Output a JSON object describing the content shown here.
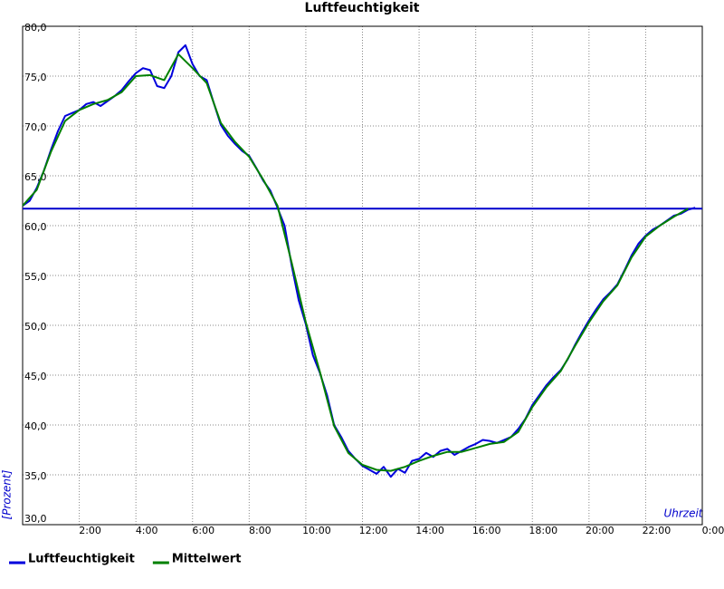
{
  "chart_data": {
    "type": "line",
    "title": "Luftfeuchtigkeit",
    "x_label": "Uhrzeit",
    "y_label": "[Prozent]",
    "xlim": [
      0,
      24
    ],
    "ylim": [
      30,
      80
    ],
    "xticks": [
      {
        "value": 2,
        "label": "2:00"
      },
      {
        "value": 4,
        "label": "4:00"
      },
      {
        "value": 6,
        "label": "6:00"
      },
      {
        "value": 8,
        "label": "8:00"
      },
      {
        "value": 10,
        "label": "10:00"
      },
      {
        "value": 12,
        "label": "12:00"
      },
      {
        "value": 14,
        "label": "14:00"
      },
      {
        "value": 16,
        "label": "16:00"
      },
      {
        "value": 18,
        "label": "18:00"
      },
      {
        "value": 20,
        "label": "20:00"
      },
      {
        "value": 22,
        "label": "22:00"
      },
      {
        "value": 24,
        "label": "0:00"
      }
    ],
    "yticks": [
      {
        "value": 30,
        "label": "30,0"
      },
      {
        "value": 35,
        "label": "35,0"
      },
      {
        "value": 40,
        "label": "40,0"
      },
      {
        "value": 45,
        "label": "45,0"
      },
      {
        "value": 50,
        "label": "50,0"
      },
      {
        "value": 55,
        "label": "55,0"
      },
      {
        "value": 60,
        "label": "60,0"
      },
      {
        "value": 65,
        "label": "65,0"
      },
      {
        "value": 70,
        "label": "70,0"
      },
      {
        "value": 75,
        "label": "75,0"
      },
      {
        "value": 80,
        "label": "80,0"
      }
    ],
    "grid": true,
    "reference_line": {
      "value": 61.7,
      "color": "#0000cc"
    },
    "series": [
      {
        "name": "Luftfeuchtigkeit",
        "color": "#0000dd",
        "x": [
          0,
          0.25,
          0.5,
          0.75,
          1.0,
          1.25,
          1.5,
          1.75,
          2.0,
          2.25,
          2.5,
          2.75,
          3.0,
          3.25,
          3.5,
          3.75,
          4.0,
          4.25,
          4.5,
          4.75,
          5.0,
          5.25,
          5.5,
          5.75,
          6.0,
          6.25,
          6.5,
          6.75,
          7.0,
          7.25,
          7.5,
          7.75,
          8.0,
          8.25,
          8.5,
          8.75,
          9.0,
          9.25,
          9.5,
          9.75,
          10.0,
          10.25,
          10.5,
          10.75,
          11.0,
          11.25,
          11.5,
          11.75,
          12.0,
          12.25,
          12.5,
          12.75,
          13.0,
          13.25,
          13.5,
          13.75,
          14.0,
          14.25,
          14.5,
          14.75,
          15.0,
          15.25,
          15.5,
          15.75,
          16.0,
          16.25,
          16.5,
          16.75,
          17.0,
          17.25,
          17.5,
          17.75,
          18.0,
          18.25,
          18.5,
          18.75,
          19.0,
          19.25,
          19.5,
          19.75,
          20.0,
          20.25,
          20.5,
          20.75,
          21.0,
          21.25,
          21.5,
          21.75,
          22.0,
          22.25,
          22.5,
          22.75,
          23.0,
          23.25,
          23.5,
          23.75
        ],
        "values": [
          62.0,
          62.5,
          63.8,
          65.5,
          67.6,
          69.5,
          71.0,
          71.3,
          71.6,
          72.2,
          72.4,
          72.0,
          72.5,
          73.0,
          73.6,
          74.5,
          75.3,
          75.8,
          75.6,
          74.0,
          73.8,
          75.0,
          77.4,
          78.1,
          76.2,
          75.0,
          74.6,
          72.3,
          70.1,
          69.0,
          68.2,
          67.5,
          67.0,
          65.8,
          64.5,
          63.5,
          61.8,
          60.0,
          56.0,
          52.5,
          50.1,
          47.0,
          45.2,
          43.0,
          40.0,
          38.8,
          37.4,
          36.6,
          35.9,
          35.5,
          35.1,
          35.8,
          34.8,
          35.6,
          35.2,
          36.4,
          36.6,
          37.2,
          36.8,
          37.4,
          37.6,
          37.0,
          37.4,
          37.8,
          38.1,
          38.5,
          38.4,
          38.2,
          38.5,
          38.8,
          39.6,
          40.6,
          42.0,
          43.0,
          44.0,
          44.8,
          45.5,
          46.6,
          48.0,
          49.3,
          50.5,
          51.6,
          52.6,
          53.3,
          54.1,
          55.5,
          57.0,
          58.2,
          59.0,
          59.6,
          60.0,
          60.5,
          61.0,
          61.2,
          61.6,
          61.8
        ]
      },
      {
        "name": "Mittelwert",
        "color": "#008000",
        "x": [
          0,
          0.5,
          1.0,
          1.5,
          2.0,
          2.5,
          3.0,
          3.5,
          4.0,
          4.5,
          5.0,
          5.5,
          6.0,
          6.5,
          7.0,
          7.5,
          8.0,
          8.5,
          9.0,
          9.5,
          10.0,
          10.5,
          11.0,
          11.5,
          12.0,
          12.5,
          13.0,
          13.5,
          14.0,
          14.5,
          15.0,
          15.5,
          16.0,
          16.5,
          17.0,
          17.5,
          18.0,
          18.5,
          19.0,
          19.5,
          20.0,
          20.5,
          21.0,
          21.5,
          22.0,
          22.5,
          23.0,
          23.5
        ],
        "values": [
          62.0,
          63.6,
          67.4,
          70.5,
          71.6,
          72.2,
          72.6,
          73.4,
          75.0,
          75.1,
          74.6,
          77.2,
          75.8,
          74.3,
          70.3,
          68.4,
          66.9,
          64.6,
          62.0,
          56.3,
          50.3,
          45.3,
          39.9,
          37.2,
          36.0,
          35.5,
          35.4,
          35.8,
          36.4,
          36.9,
          37.3,
          37.3,
          37.7,
          38.1,
          38.3,
          39.3,
          41.8,
          43.8,
          45.4,
          47.9,
          50.3,
          52.4,
          54.0,
          56.8,
          58.9,
          60.0,
          60.9,
          61.7
        ]
      }
    ],
    "legend": "bottom"
  }
}
